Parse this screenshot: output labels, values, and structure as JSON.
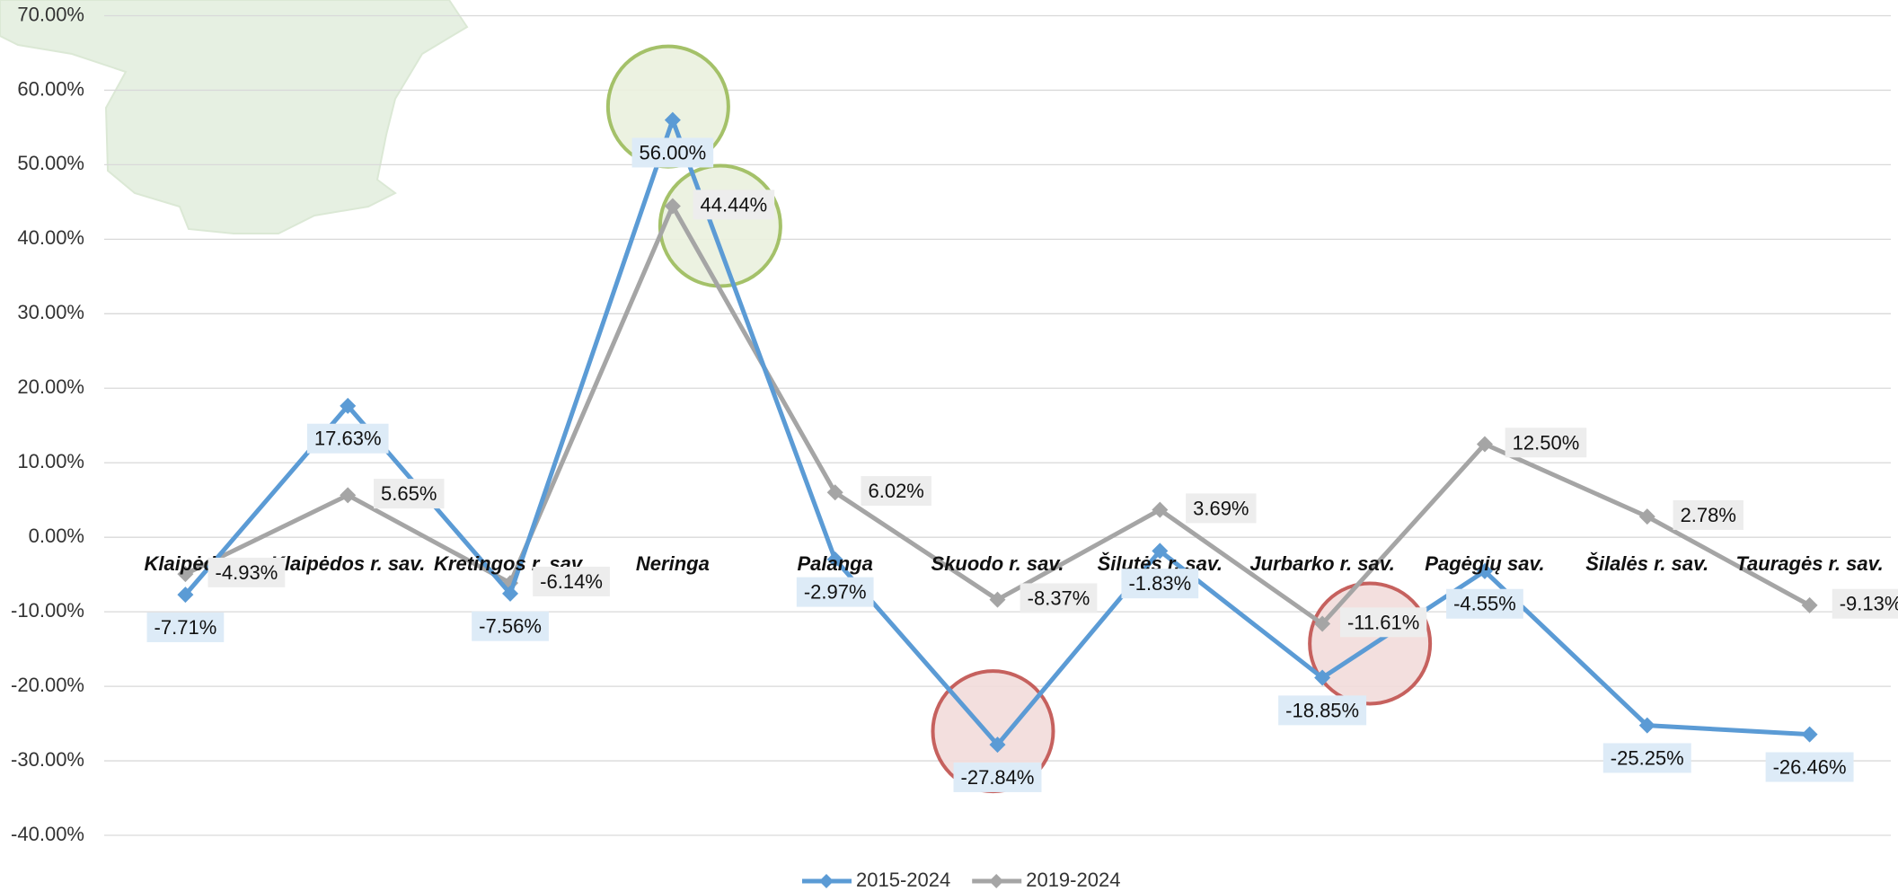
{
  "chart_data": {
    "type": "line",
    "categories": [
      "Klaipėda",
      "Klaipėdos r. sav.",
      "Kretingos r. sav.",
      "Neringa",
      "Palanga",
      "Skuodo r. sav.",
      "Šilutės r. sav.",
      "Jurbarko r. sav.",
      "Pagėgių sav.",
      "Šilalės r. sav.",
      "Tauragės r. sav."
    ],
    "series": [
      {
        "name": "2015-2024",
        "color": "#5b9bd5",
        "values": [
          -7.71,
          17.63,
          -7.56,
          56,
          -2.97,
          -27.84,
          -1.83,
          -18.85,
          -4.55,
          -25.25,
          -26.46
        ],
        "value_labels": [
          "-7.71%",
          "17.63%",
          "-7.56%",
          "56.00%",
          "-2.97%",
          "-27.84%",
          "-1.83%",
          "-18.85%",
          "-4.55%",
          "-25.25%",
          "-26.46%"
        ]
      },
      {
        "name": "2019-2024",
        "color": "#a5a5a5",
        "values": [
          -4.93,
          5.65,
          -6.14,
          44.44,
          6.02,
          -8.37,
          3.69,
          -11.61,
          12.5,
          2.78,
          -9.13
        ],
        "value_labels": [
          "-4.93%",
          "5.65%",
          "-6.14%",
          "44.44%",
          "6.02%",
          "-8.37%",
          "3.69%",
          "-11.61%",
          "12.50%",
          "2.78%",
          "-9.13%"
        ]
      }
    ],
    "ylim": [
      -40,
      70
    ],
    "yticks": [
      {
        "value": -40,
        "label": "-40.00%"
      },
      {
        "value": -30,
        "label": "-30.00%"
      },
      {
        "value": -20,
        "label": "-20.00%"
      },
      {
        "value": -10,
        "label": "-10.00%"
      },
      {
        "value": 0,
        "label": "0.00%"
      },
      {
        "value": 10,
        "label": "10.00%"
      },
      {
        "value": 20,
        "label": "20.00%"
      },
      {
        "value": 30,
        "label": "30.00%"
      },
      {
        "value": 40,
        "label": "40.00%"
      },
      {
        "value": 50,
        "label": "50.00%"
      },
      {
        "value": 60,
        "label": "60.00%"
      },
      {
        "value": 70,
        "label": "70.00%"
      }
    ],
    "grid": true,
    "legend": "bottom"
  }
}
